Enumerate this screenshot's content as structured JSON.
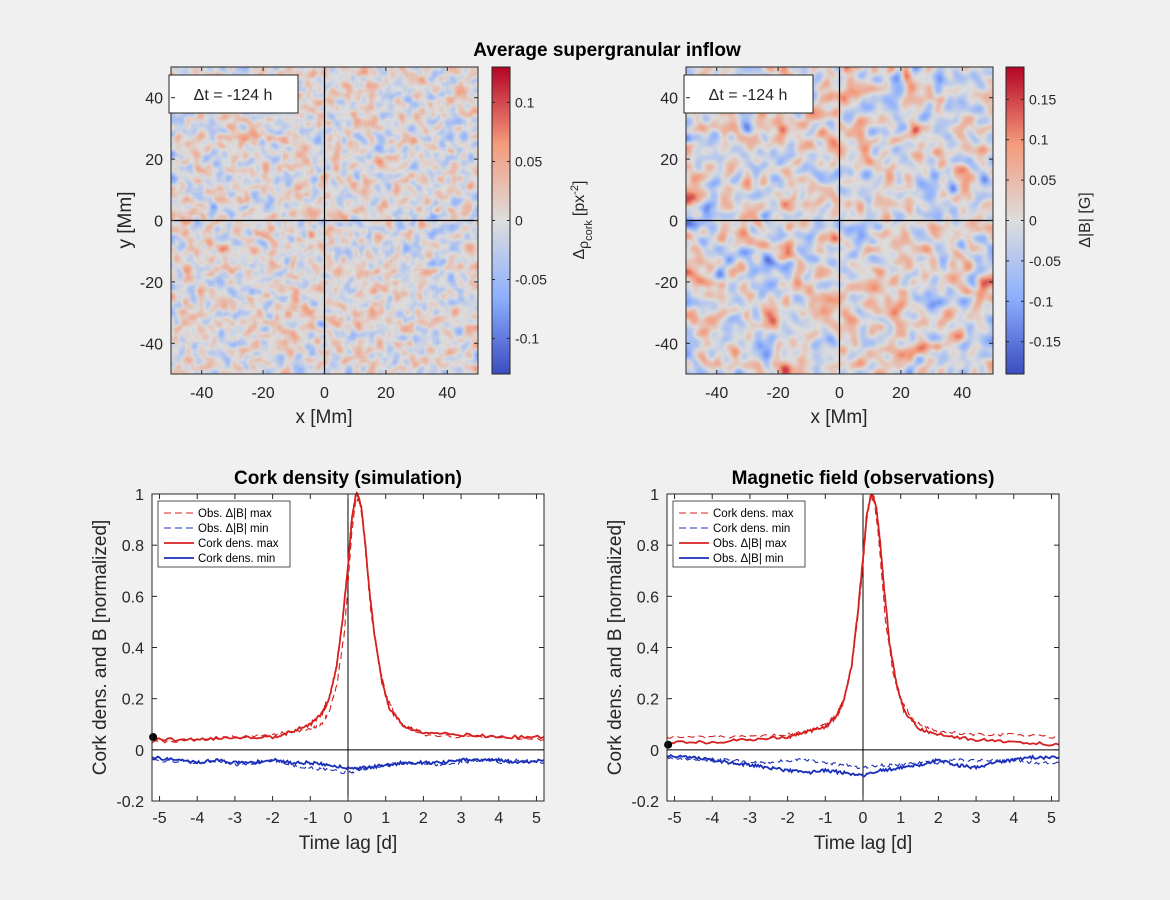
{
  "figure": {
    "suptitle": "Average supergranular inflow"
  },
  "maps": [
    {
      "id": "left",
      "time_label": "Δt = -124 h",
      "xlabel": "x [Mm]",
      "ylabel": "y [Mm]",
      "xlim": [
        -50,
        50
      ],
      "ylim": [
        -50,
        50
      ],
      "xticks": [
        "-40",
        "-20",
        "0",
        "20",
        "40"
      ],
      "yticks": [
        "40",
        "20",
        "0",
        "-20",
        "-40"
      ],
      "show_ylabel": true,
      "colorbar": {
        "label_main": "Δ",
        "label_sub": "ρ",
        "label_subsub": "cork",
        "label_unit": "[px",
        "label_exp": "-2",
        "label_close": "]",
        "range": [
          -0.13,
          0.13
        ],
        "ticks": [
          0.1,
          0.05,
          0,
          -0.05,
          -0.1
        ],
        "tick_labels": [
          "0.1",
          "0.05",
          "0",
          "-0.05",
          "-0.1"
        ]
      },
      "texture": "fine",
      "seed": 11
    },
    {
      "id": "right",
      "time_label": "Δt = -124 h",
      "xlabel": "x [Mm]",
      "ylabel": "",
      "xlim": [
        -50,
        50
      ],
      "ylim": [
        -50,
        50
      ],
      "xticks": [
        "-40",
        "-20",
        "0",
        "20",
        "40"
      ],
      "yticks": [
        "40",
        "20",
        "0",
        "-20",
        "-40"
      ],
      "show_ylabel": false,
      "colorbar": {
        "label_full": "Δ|B| [G]",
        "range": [
          -0.19,
          0.19
        ],
        "ticks": [
          0.15,
          0.1,
          0.05,
          0,
          -0.05,
          -0.1,
          -0.15
        ],
        "tick_labels": [
          "0.15",
          "0.1",
          "0.05",
          "0",
          "-0.05",
          "-0.1",
          "-0.15"
        ]
      },
      "texture": "coarse",
      "seed": 29
    }
  ],
  "chart_data": [
    {
      "type": "line",
      "title": "Cork density (simulation)",
      "xlabel": "Time lag [d]",
      "ylabel": "Cork dens. and B [normalized]",
      "xlim": [
        -5.2,
        5.2
      ],
      "ylim": [
        -0.2,
        1
      ],
      "xticks": [
        -5,
        -4,
        -3,
        -2,
        -1,
        0,
        1,
        2,
        3,
        4,
        5
      ],
      "yticks": [
        -0.2,
        0,
        0.2,
        0.4,
        0.6,
        0.8,
        1
      ],
      "ytick_labels": [
        "-0.2",
        "0",
        "0.2",
        "0.4",
        "0.6",
        "0.8",
        "1"
      ],
      "marker": {
        "x": -5.17,
        "y": 0.05
      },
      "legend_position": "top-left",
      "series": [
        {
          "name": "Obs. Δ|B| max",
          "style": "dashed",
          "color": "#d62020",
          "x": [
            -5.2,
            -4,
            -3,
            -2,
            -1.5,
            -1,
            -0.7,
            -0.5,
            -0.3,
            -0.1,
            0,
            0.1,
            0.2,
            0.3,
            0.4,
            0.5,
            0.6,
            0.8,
            1.0,
            1.2,
            1.5,
            2,
            3,
            4,
            5.2
          ],
          "y": [
            0.03,
            0.04,
            0.05,
            0.06,
            0.07,
            0.08,
            0.1,
            0.15,
            0.25,
            0.45,
            0.65,
            0.85,
            0.97,
            0.98,
            0.88,
            0.72,
            0.55,
            0.35,
            0.22,
            0.15,
            0.09,
            0.06,
            0.05,
            0.05,
            0.04
          ]
        },
        {
          "name": "Obs. Δ|B| min",
          "style": "dashed",
          "color": "#1a2fb8",
          "x": [
            -5.2,
            -4,
            -3.5,
            -3,
            -2.5,
            -2,
            -1.5,
            -1,
            -0.5,
            0,
            0.3,
            0.6,
            1,
            1.5,
            2,
            2.5,
            3,
            3.5,
            4,
            4.5,
            5.2
          ],
          "y": [
            -0.04,
            -0.05,
            -0.04,
            -0.06,
            -0.05,
            -0.04,
            -0.06,
            -0.07,
            -0.08,
            -0.09,
            -0.08,
            -0.07,
            -0.06,
            -0.05,
            -0.05,
            -0.06,
            -0.05,
            -0.04,
            -0.05,
            -0.04,
            -0.05
          ]
        },
        {
          "name": "Cork dens. max",
          "style": "solid",
          "color": "#d62020",
          "x": [
            -5.2,
            -4,
            -3,
            -2,
            -1.5,
            -1,
            -0.7,
            -0.5,
            -0.3,
            -0.15,
            0,
            0.1,
            0.2,
            0.25,
            0.35,
            0.45,
            0.55,
            0.7,
            0.9,
            1.1,
            1.5,
            2,
            3,
            4,
            5.2
          ],
          "y": [
            0.04,
            0.04,
            0.05,
            0.05,
            0.07,
            0.1,
            0.14,
            0.2,
            0.33,
            0.5,
            0.72,
            0.9,
            0.99,
            1.0,
            0.95,
            0.82,
            0.65,
            0.45,
            0.27,
            0.16,
            0.09,
            0.07,
            0.06,
            0.05,
            0.05
          ]
        },
        {
          "name": "Cork dens. min",
          "style": "solid",
          "color": "#1a2fb8",
          "x": [
            -5.2,
            -4.5,
            -4,
            -3.5,
            -3,
            -2.5,
            -2,
            -1.5,
            -1,
            -0.5,
            0,
            0.5,
            1,
            1.5,
            2,
            2.5,
            3,
            3.5,
            4,
            4.5,
            5.2
          ],
          "y": [
            -0.03,
            -0.04,
            -0.05,
            -0.04,
            -0.05,
            -0.05,
            -0.04,
            -0.05,
            -0.05,
            -0.06,
            -0.07,
            -0.07,
            -0.06,
            -0.05,
            -0.05,
            -0.05,
            -0.04,
            -0.04,
            -0.04,
            -0.05,
            -0.04
          ]
        }
      ]
    },
    {
      "type": "line",
      "title": "Magnetic field (observations)",
      "xlabel": "Time lag [d]",
      "ylabel": "Cork dens. and B [normalized]",
      "xlim": [
        -5.2,
        5.2
      ],
      "ylim": [
        -0.2,
        1
      ],
      "xticks": [
        -5,
        -4,
        -3,
        -2,
        -1,
        0,
        1,
        2,
        3,
        4,
        5
      ],
      "yticks": [
        -0.2,
        0,
        0.2,
        0.4,
        0.6,
        0.8,
        1
      ],
      "ytick_labels": [
        "-0.2",
        "0",
        "0.2",
        "0.4",
        "0.6",
        "0.8",
        "1"
      ],
      "marker": {
        "x": -5.17,
        "y": 0.02
      },
      "legend_position": "top-left",
      "series": [
        {
          "name": "Cork dens. max",
          "style": "dashed",
          "color": "#d62020",
          "x": [
            -5.2,
            -4,
            -3,
            -2,
            -1.5,
            -1,
            -0.7,
            -0.5,
            -0.3,
            -0.15,
            0,
            0.1,
            0.2,
            0.3,
            0.4,
            0.5,
            0.6,
            0.8,
            1.0,
            1.3,
            1.6,
            2,
            3,
            4,
            5.2
          ],
          "y": [
            0.05,
            0.05,
            0.05,
            0.06,
            0.07,
            0.1,
            0.14,
            0.2,
            0.33,
            0.5,
            0.72,
            0.9,
            0.99,
            0.97,
            0.85,
            0.68,
            0.5,
            0.3,
            0.2,
            0.12,
            0.09,
            0.07,
            0.06,
            0.06,
            0.05
          ]
        },
        {
          "name": "Cork dens. min",
          "style": "dashed",
          "color": "#1a2fb8",
          "x": [
            -5.2,
            -4.5,
            -4,
            -3.5,
            -3,
            -2.5,
            -2,
            -1.5,
            -1,
            -0.5,
            0,
            0.5,
            1,
            1.5,
            2,
            2.5,
            3,
            3.5,
            4,
            4.5,
            5.2
          ],
          "y": [
            -0.03,
            -0.04,
            -0.04,
            -0.04,
            -0.05,
            -0.05,
            -0.04,
            -0.04,
            -0.05,
            -0.06,
            -0.07,
            -0.06,
            -0.06,
            -0.05,
            -0.05,
            -0.04,
            -0.04,
            -0.04,
            -0.04,
            -0.05,
            -0.05
          ]
        },
        {
          "name": "Obs. Δ|B| max",
          "style": "solid",
          "color": "#d62020",
          "x": [
            -5.2,
            -4,
            -3,
            -2,
            -1.5,
            -1,
            -0.7,
            -0.5,
            -0.3,
            -0.15,
            0,
            0.1,
            0.2,
            0.25,
            0.35,
            0.45,
            0.55,
            0.7,
            0.9,
            1.1,
            1.5,
            2,
            3,
            4,
            5.2
          ],
          "y": [
            0.03,
            0.03,
            0.04,
            0.05,
            0.07,
            0.09,
            0.13,
            0.2,
            0.33,
            0.52,
            0.75,
            0.92,
            0.99,
            1.0,
            0.95,
            0.82,
            0.65,
            0.42,
            0.25,
            0.15,
            0.08,
            0.06,
            0.04,
            0.03,
            0.02
          ]
        },
        {
          "name": "Obs. Δ|B| min",
          "style": "solid",
          "color": "#1a2fb8",
          "x": [
            -5.2,
            -4.5,
            -4,
            -3.5,
            -3,
            -2.5,
            -2,
            -1.5,
            -1,
            -0.5,
            0,
            0.5,
            1,
            1.5,
            2,
            2.5,
            3,
            3.5,
            4,
            4.5,
            5.2
          ],
          "y": [
            -0.02,
            -0.03,
            -0.04,
            -0.05,
            -0.06,
            -0.07,
            -0.08,
            -0.09,
            -0.08,
            -0.09,
            -0.1,
            -0.08,
            -0.07,
            -0.06,
            -0.04,
            -0.06,
            -0.07,
            -0.05,
            -0.04,
            -0.03,
            -0.03
          ]
        }
      ]
    }
  ]
}
